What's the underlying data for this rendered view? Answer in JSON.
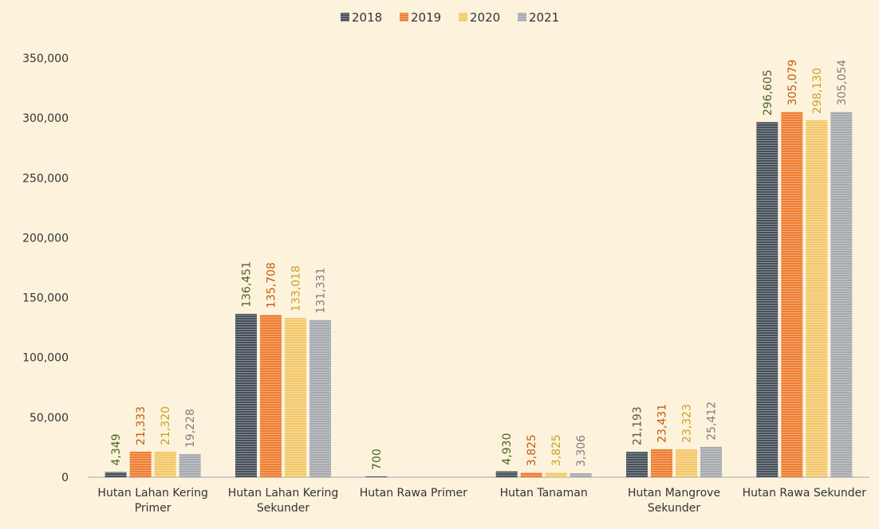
{
  "chart_data": {
    "type": "bar",
    "categories": [
      "Hutan Lahan Kering Primer",
      "Hutan Lahan Kering Sekunder",
      "Hutan Rawa Primer",
      "Hutan Tanaman",
      "Hutan Mangrove Sekunder",
      "Hutan Rawa Sekunder"
    ],
    "series": [
      {
        "name": "2018",
        "color": "#46505a",
        "label_color": "#4f6228",
        "values": [
          4349,
          136451,
          700,
          4930,
          21193,
          296605
        ],
        "value_labels": [
          "4,349",
          "136,451",
          "700",
          "4,930",
          "21,193",
          "296,605"
        ]
      },
      {
        "name": "2019",
        "color": "#ee7d31",
        "label_color": "#c55a11",
        "values": [
          21333,
          135708,
          null,
          3825,
          23431,
          305079
        ],
        "value_labels": [
          "21,333",
          "135,708",
          null,
          "3,825",
          "23,431",
          "305,079"
        ]
      },
      {
        "name": "2020",
        "color": "#f3c86a",
        "label_color": "#c9a227",
        "values": [
          21320,
          133018,
          null,
          3825,
          23323,
          298130
        ],
        "value_labels": [
          "21,320",
          "133,018",
          null,
          "3,825",
          "23,323",
          "298,130"
        ]
      },
      {
        "name": "2021",
        "color": "#a5a9ae",
        "label_color": "#7f7f7f",
        "values": [
          19228,
          131331,
          null,
          3306,
          25412,
          305054
        ],
        "value_labels": [
          "19,228",
          "131,331",
          null,
          "3,306",
          "25,412",
          "305,054"
        ]
      }
    ],
    "ylim": [
      0,
      350000
    ],
    "yticks": [
      0,
      {
        "value": 50000,
        "label": "50,000"
      },
      {
        "value": 100000,
        "label": "100,000"
      },
      {
        "value": 150000,
        "label": "150,000"
      },
      {
        "value": 200000,
        "label": "200,000"
      },
      {
        "value": 250000,
        "label": "250,000"
      },
      {
        "value": 300000,
        "label": "300,000"
      },
      {
        "value": 350000,
        "label": "350,000"
      }
    ],
    "legend": "top",
    "grid": false
  }
}
